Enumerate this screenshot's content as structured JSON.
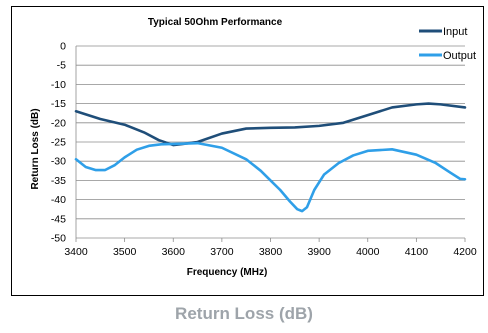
{
  "caption": "Return Loss (dB)",
  "chart_data": {
    "type": "line",
    "title": "Typical 50Ohm Performance",
    "xlabel": "Frequency (MHz)",
    "ylabel": "Return Loss (dB)",
    "xlim": [
      3400,
      4200
    ],
    "ylim": [
      -50,
      0
    ],
    "xticks": [
      3400,
      3500,
      3600,
      3700,
      3800,
      3900,
      4000,
      4100,
      4200
    ],
    "yticks": [
      0,
      -5,
      -10,
      -15,
      -20,
      -25,
      -30,
      -35,
      -40,
      -45,
      -50
    ],
    "grid": true,
    "legend_position": "top-right",
    "series": [
      {
        "name": "Input",
        "color": "#1f4e79",
        "x": [
          3400,
          3450,
          3500,
          3540,
          3570,
          3600,
          3620,
          3650,
          3700,
          3750,
          3800,
          3850,
          3900,
          3950,
          4000,
          4050,
          4100,
          4125,
          4150,
          4200
        ],
        "y": [
          -17,
          -19,
          -20.5,
          -22.5,
          -24.5,
          -25.8,
          -25.5,
          -25,
          -22.8,
          -21.5,
          -21.3,
          -21.2,
          -20.8,
          -20,
          -18,
          -16,
          -15.2,
          -15,
          -15.2,
          -16
        ]
      },
      {
        "name": "Output",
        "color": "#2f9fe8",
        "x": [
          3400,
          3420,
          3440,
          3460,
          3480,
          3500,
          3525,
          3550,
          3575,
          3600,
          3650,
          3700,
          3750,
          3780,
          3800,
          3820,
          3840,
          3855,
          3865,
          3875,
          3890,
          3910,
          3940,
          3970,
          4000,
          4050,
          4100,
          4140,
          4170,
          4190,
          4200
        ],
        "y": [
          -29.5,
          -31.5,
          -32.3,
          -32.3,
          -31,
          -29,
          -27,
          -26,
          -25.6,
          -25.5,
          -25.3,
          -26.5,
          -29.5,
          -32.5,
          -35,
          -37.5,
          -40.5,
          -42.5,
          -43,
          -42,
          -37.5,
          -33.5,
          -30.5,
          -28.5,
          -27.3,
          -26.9,
          -28.3,
          -30.5,
          -33,
          -34.6,
          -34.7
        ]
      }
    ]
  }
}
